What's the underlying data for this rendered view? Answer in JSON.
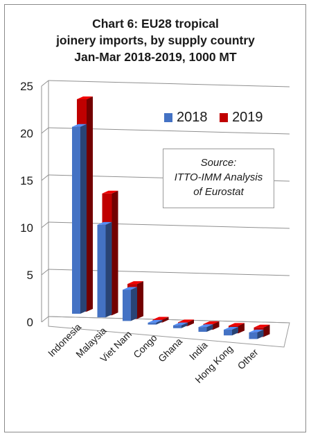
{
  "chart_data": {
    "type": "bar",
    "title_lines": [
      "Chart 6: EU28 tropical",
      "joinery imports, by supply country",
      "Jan-Mar 2018-2019, 1000 MT"
    ],
    "categories": [
      "Indonesia",
      "Malaysia",
      "Viet Nam",
      "Congo",
      "Ghana",
      "India",
      "Hong Kong",
      "Other"
    ],
    "series": [
      {
        "name": "2018",
        "values": [
          19.8,
          9.8,
          3.3,
          0.2,
          0.3,
          0.5,
          0.6,
          0.7
        ],
        "color": "#4472c4"
      },
      {
        "name": "2019",
        "values": [
          22.5,
          12.9,
          3.7,
          0.3,
          0.4,
          0.6,
          0.8,
          1.0
        ],
        "color": "#c00000"
      }
    ],
    "y_ticks": [
      "0",
      "5",
      "10",
      "15",
      "20",
      "25"
    ],
    "ylim": [
      0,
      25
    ],
    "grid": true,
    "legend_position": "top-right"
  },
  "annotation": {
    "lines": [
      "Source:",
      "ITTO-IMM Analysis",
      "of Eurostat"
    ]
  }
}
